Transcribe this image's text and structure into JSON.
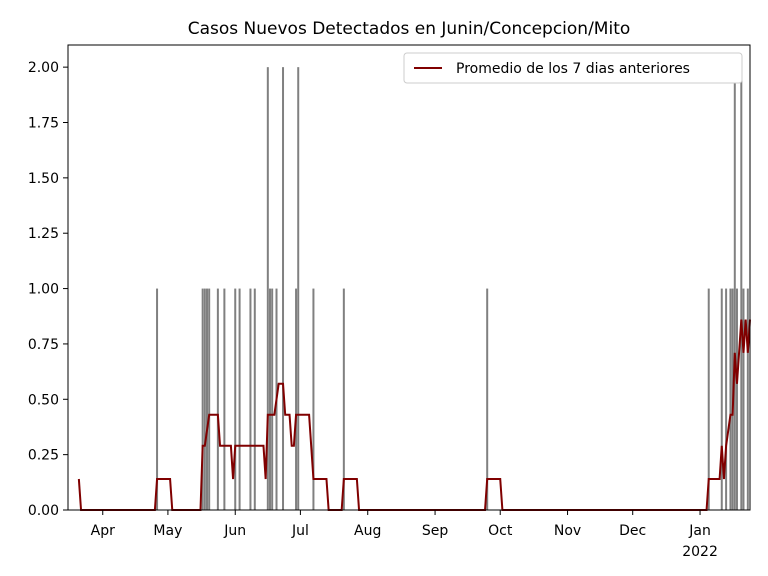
{
  "chart_data": {
    "type": "bar",
    "title": "Casos Nuevos Detectados en Junin/Concepcion/Mito",
    "xlim": [
      0,
      314
    ],
    "ylim": [
      0,
      2.1
    ],
    "xticks": [
      {
        "value": 16,
        "label": "Apr"
      },
      {
        "value": 46,
        "label": "May"
      },
      {
        "value": 77,
        "label": "Jun"
      },
      {
        "value": 107,
        "label": "Jul"
      },
      {
        "value": 138,
        "label": "Aug"
      },
      {
        "value": 169,
        "label": "Sep"
      },
      {
        "value": 199,
        "label": "Oct"
      },
      {
        "value": 230,
        "label": "Nov"
      },
      {
        "value": 260,
        "label": "Dec"
      },
      {
        "value": 291,
        "label": "Jan"
      }
    ],
    "x_sublabel": "2022",
    "yticks": [
      {
        "value": 0,
        "label": "0.00"
      },
      {
        "value": 0.25,
        "label": "0.25"
      },
      {
        "value": 0.5,
        "label": "0.50"
      },
      {
        "value": 0.75,
        "label": "0.75"
      },
      {
        "value": 1,
        "label": "1.00"
      },
      {
        "value": 1.25,
        "label": "1.25"
      },
      {
        "value": 1.5,
        "label": "1.50"
      },
      {
        "value": 1.75,
        "label": "1.75"
      },
      {
        "value": 2,
        "label": "2.00"
      }
    ],
    "legend": "upper right",
    "series": [
      {
        "type": "bar",
        "color": "#808080",
        "x": [
          41,
          62,
          63,
          64,
          65,
          69,
          72,
          77,
          79,
          84,
          86,
          92,
          93,
          94,
          96,
          99,
          105,
          106,
          113,
          127,
          193,
          295,
          301,
          303,
          305,
          306,
          307,
          308,
          310,
          311,
          313
        ],
        "values": [
          1,
          1,
          1,
          1,
          1,
          1,
          1,
          1,
          1,
          1,
          1,
          2,
          1,
          1,
          1,
          2,
          1,
          2,
          1,
          1,
          1,
          1,
          1,
          1,
          1,
          1,
          2,
          1,
          2,
          1,
          1
        ]
      },
      {
        "type": "line",
        "name": "Promedio de los 7 dias anteriores",
        "color": "#800000",
        "x": [
          5,
          6,
          40,
          41,
          47,
          48,
          61,
          62,
          63,
          65,
          69,
          70,
          75,
          76,
          77,
          90,
          91,
          92,
          95,
          97,
          99,
          100,
          102,
          103,
          104,
          105,
          111,
          113,
          119,
          120,
          126,
          127,
          133,
          134,
          192,
          193,
          199,
          200,
          294,
          295,
          300,
          301,
          302,
          303,
          305,
          306,
          307,
          308,
          310,
          311,
          312,
          313,
          314
        ],
        "values": [
          0.14,
          0,
          0,
          0.14,
          0.14,
          0,
          0,
          0.29,
          0.29,
          0.43,
          0.43,
          0.29,
          0.29,
          0.14,
          0.29,
          0.29,
          0.14,
          0.43,
          0.43,
          0.57,
          0.57,
          0.43,
          0.43,
          0.29,
          0.29,
          0.43,
          0.43,
          0.14,
          0.14,
          0,
          0,
          0.14,
          0.14,
          0,
          0,
          0.14,
          0.14,
          0,
          0,
          0.14,
          0.14,
          0.29,
          0.14,
          0.29,
          0.43,
          0.43,
          0.71,
          0.57,
          0.86,
          0.71,
          0.86,
          0.71,
          0.86
        ]
      }
    ]
  }
}
